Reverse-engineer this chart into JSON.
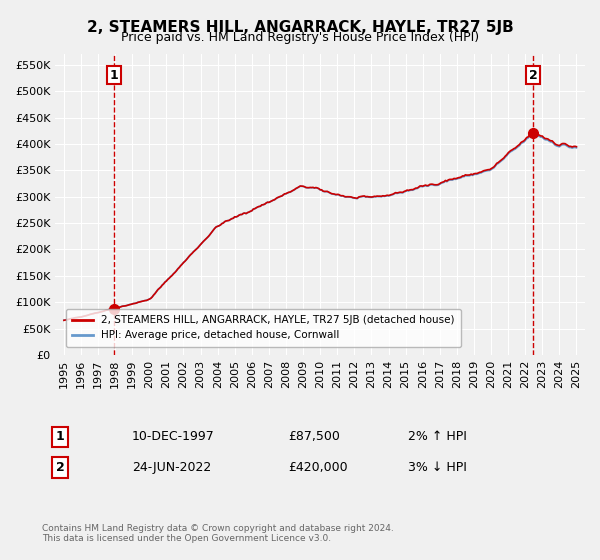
{
  "title": "2, STEAMERS HILL, ANGARRACK, HAYLE, TR27 5JB",
  "subtitle": "Price paid vs. HM Land Registry's House Price Index (HPI)",
  "xlabel": "",
  "ylabel": "",
  "background_color": "#f0f0f0",
  "plot_background": "#f0f0f0",
  "legend_label_red": "2, STEAMERS HILL, ANGARRACK, HAYLE, TR27 5JB (detached house)",
  "legend_label_blue": "HPI: Average price, detached house, Cornwall",
  "point1_label": "10-DEC-1997",
  "point1_price": "£87,500",
  "point1_hpi": "2% ↑ HPI",
  "point2_label": "24-JUN-2022",
  "point2_price": "£420,000",
  "point2_hpi": "3% ↓ HPI",
  "footer": "Contains HM Land Registry data © Crown copyright and database right 2024.\nThis data is licensed under the Open Government Licence v3.0.",
  "ylim": [
    0,
    570000
  ],
  "yticks": [
    0,
    50000,
    100000,
    150000,
    200000,
    250000,
    300000,
    350000,
    400000,
    450000,
    500000,
    550000
  ],
  "hpi_color": "#6699cc",
  "price_color": "#cc0000",
  "dashed_color": "#cc0000",
  "point_color": "#cc0000"
}
